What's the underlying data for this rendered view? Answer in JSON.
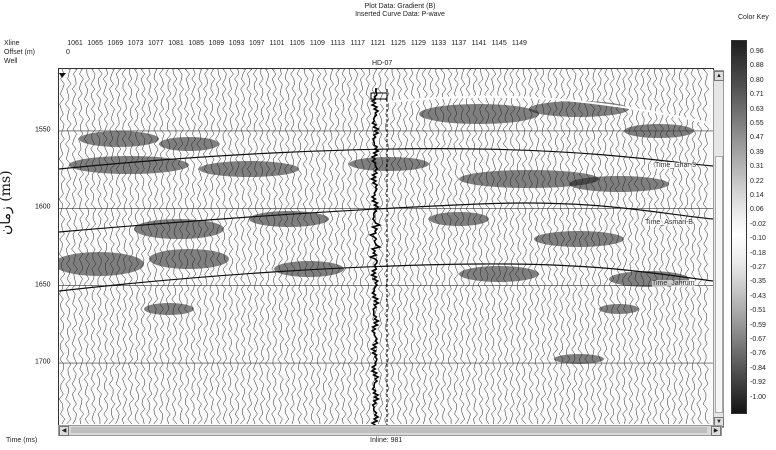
{
  "header": {
    "plot_data": "Plot Data: Gradient  (B)",
    "curve_data": "Inserted Curve Data:  P-wave"
  },
  "row_labels": {
    "xline": "Xline",
    "offset": "Offset (m)",
    "well": "Well"
  },
  "offset_value": "0",
  "xline_ticks": [
    "1061",
    "1065",
    "1069",
    "1073",
    "1077",
    "1081",
    "1085",
    "1089",
    "1093",
    "1097",
    "1101",
    "1105",
    "1109",
    "1113",
    "1117",
    "1121",
    "1125",
    "1129",
    "1133",
    "1137",
    "1141",
    "1145",
    "1149"
  ],
  "well_name": "HD-07",
  "time_axis": {
    "ticks": [
      "1550",
      "1600",
      "1650",
      "1700"
    ],
    "range_ms": [
      1510,
      1740
    ]
  },
  "horizons": [
    "Time_Ghar-3",
    "Time_Asmari-B",
    "Time_Jahrum"
  ],
  "color_key": {
    "title": "Color Key",
    "labels": [
      "0.96",
      "0.88",
      "0.80",
      "0.71",
      "0.63",
      "0.55",
      "0.47",
      "0.39",
      "0.31",
      "0.22",
      "0.14",
      "0.06",
      "-0.02",
      "-0.10",
      "-0.18",
      "-0.27",
      "-0.35",
      "-0.43",
      "-0.51",
      "-0.59",
      "-0.67",
      "-0.76",
      "-0.84",
      "-0.92",
      "-1.00"
    ]
  },
  "footer": {
    "time_label": "Time (ms)",
    "inline": "Inline: 981"
  },
  "axis_label_fa": "زمان (ms)",
  "scroll": {
    "up": "▲",
    "down": "▼",
    "left": "◀",
    "right": "▶"
  },
  "colors": {
    "trace": "#222222",
    "anomaly_dark": "#1a1a1a",
    "horizon": "#111111"
  }
}
